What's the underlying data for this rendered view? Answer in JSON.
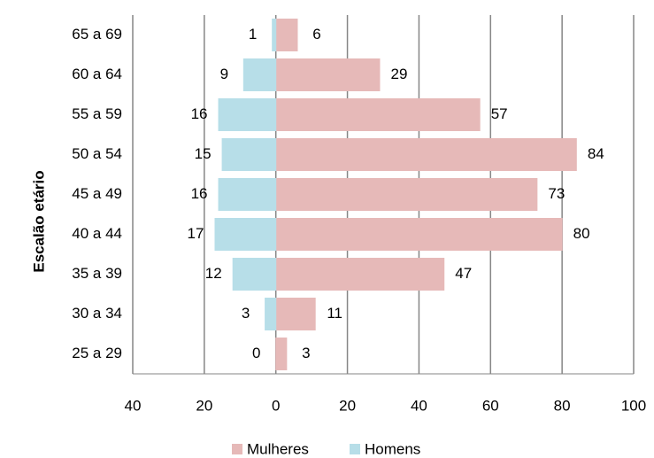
{
  "chart_data": {
    "type": "pyramid",
    "y_axis_label": "Escalão etário",
    "categories": [
      "65 a 69",
      "60 a 64",
      "55 a 59",
      "50 a 54",
      "45 a 49",
      "40 a 44",
      "35 a 39",
      "30 a 34",
      "25 a 29"
    ],
    "series": [
      {
        "name": "Mulheres",
        "color": "#e6b9b8",
        "values": [
          6,
          29,
          57,
          84,
          73,
          80,
          47,
          11,
          3
        ]
      },
      {
        "name": "Homens",
        "color": "#b7dee8",
        "values": [
          -1,
          -9,
          -16,
          -15,
          -16,
          -17,
          -12,
          -3,
          0
        ],
        "value_labels": [
          "1",
          "9",
          "16",
          "15",
          "16",
          "17",
          "12",
          "3",
          "0"
        ]
      }
    ],
    "xlim": [
      -40,
      100
    ],
    "xticks": [
      {
        "value": -40,
        "label": "40"
      },
      {
        "value": -20,
        "label": "20"
      },
      0,
      20,
      40,
      60,
      80,
      100
    ],
    "grid": true
  }
}
